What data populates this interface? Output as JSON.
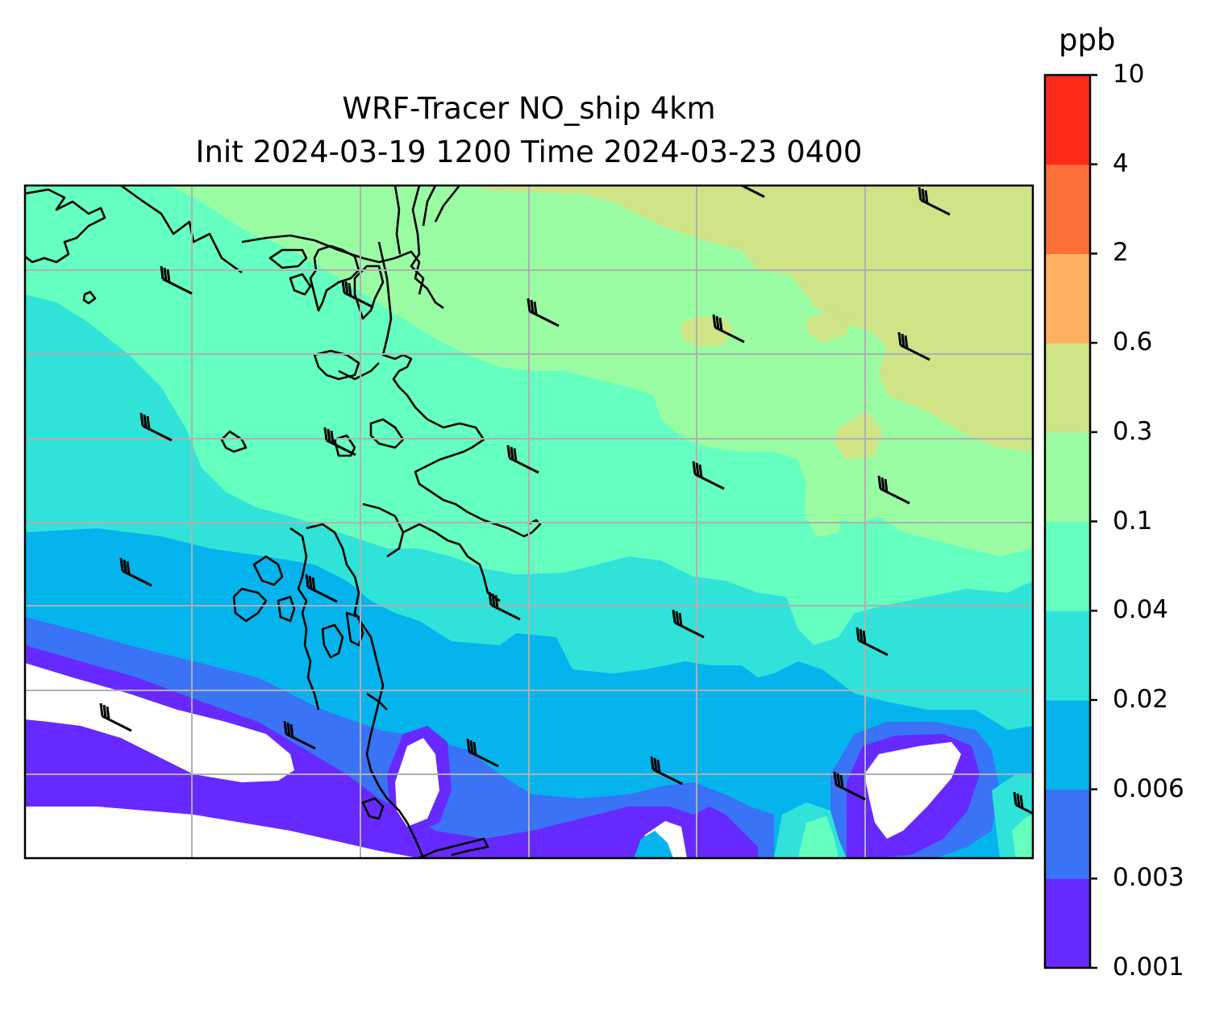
{
  "title": {
    "line1": "WRF-Tracer NO_ship 4km",
    "line2": "Init 2024-03-19 1200 Time 2024-03-23 0400"
  },
  "colorbar": {
    "unit": "ppb",
    "levels": [
      "0.001",
      "0.003",
      "0.006",
      "0.02",
      "0.04",
      "0.1",
      "0.3",
      "0.6",
      "2",
      "4",
      "10"
    ],
    "colors": [
      "#6629ff",
      "#3a73f5",
      "#05b4ec",
      "#31e2d8",
      "#65ffc0",
      "#9afca2",
      "#cfe387",
      "#ffb15f",
      "#ff7039",
      "#ff2a18"
    ]
  },
  "map": {
    "background_fill": "#ffffff",
    "coastline_color": "#000000",
    "gridline_color": "#b0b0b0",
    "gridlines": "on",
    "wind_barbs": "on"
  }
}
